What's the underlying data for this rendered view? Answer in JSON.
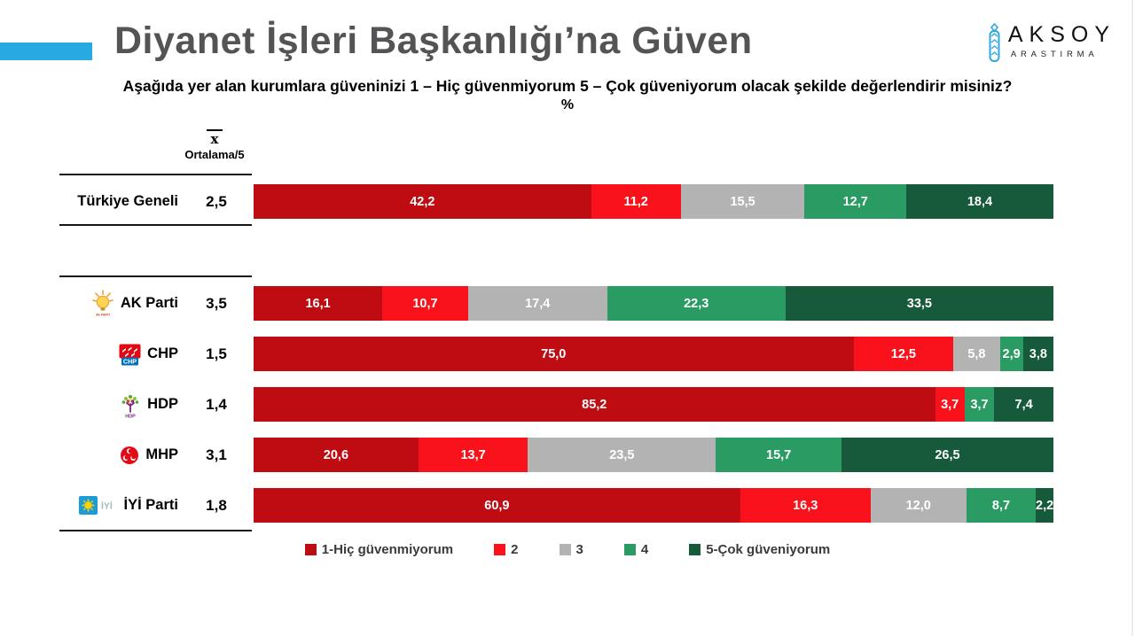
{
  "header": {
    "title": "Diyanet İşleri Başkanlığı’na Güven",
    "subtitle": "Aşağıda yer alan kurumlara güveninizi 1 – Hiç güvenmiyorum 5 – Çok güveniyorum olacak şekilde değerlendirir misiniz?",
    "percent": "%",
    "accent_color": "#29A9E1",
    "brand": {
      "name": "AKSOY",
      "sub": "ARASTIRMA",
      "icon_color": "#2FA8E1"
    }
  },
  "avg_header": {
    "symbol": "x",
    "label": "Ortalama/5"
  },
  "chart_data": {
    "type": "bar",
    "orientation": "horizontal-stacked",
    "title": "Diyanet İşleri Başkanlığı’na Güven",
    "xlim": [
      0,
      100
    ],
    "value_format": "comma-decimal",
    "legend_position": "bottom",
    "categories": [
      "Türkiye Geneli",
      "AK Parti",
      "CHP",
      "HDP",
      "MHP",
      "İYİ Parti"
    ],
    "logos": [
      null,
      "akparti",
      "chp",
      "hdp",
      "mhp",
      "iyi"
    ],
    "averages": [
      "2,5",
      "3,5",
      "1,5",
      "1,4",
      "3,1",
      "1,8"
    ],
    "series": [
      {
        "name": "1-Hiç güvenmiyorum",
        "color": "#BF0C13",
        "values": [
          42.2,
          16.1,
          75.0,
          85.2,
          20.6,
          60.9
        ],
        "labels": [
          "42,2",
          "16,1",
          "75,0",
          "85,2",
          "20,6",
          "60,9"
        ]
      },
      {
        "name": "2",
        "color": "#F9121B",
        "values": [
          11.2,
          10.7,
          12.5,
          3.7,
          13.7,
          16.3
        ],
        "labels": [
          "11,2",
          "10,7",
          "12,5",
          "3,7",
          "13,7",
          "16,3"
        ]
      },
      {
        "name": "3",
        "color": "#B3B3B3",
        "values": [
          15.5,
          17.4,
          5.8,
          0,
          23.5,
          12.0
        ],
        "labels": [
          "15,5",
          "17,4",
          "5,8",
          "",
          "23,5",
          "12,0"
        ]
      },
      {
        "name": "4",
        "color": "#2B9B64",
        "values": [
          12.7,
          22.3,
          2.9,
          3.7,
          15.7,
          8.7
        ],
        "labels": [
          "12,7",
          "22,3",
          "2,9",
          "3,7",
          "15,7",
          "8,7"
        ]
      },
      {
        "name": "5-Çok güveniyorum",
        "color": "#16593B",
        "values": [
          18.4,
          33.5,
          3.8,
          7.4,
          26.5,
          2.2
        ],
        "labels": [
          "18,4",
          "33,5",
          "3,8",
          "7,4",
          "26,5",
          "2,2"
        ]
      }
    ]
  }
}
